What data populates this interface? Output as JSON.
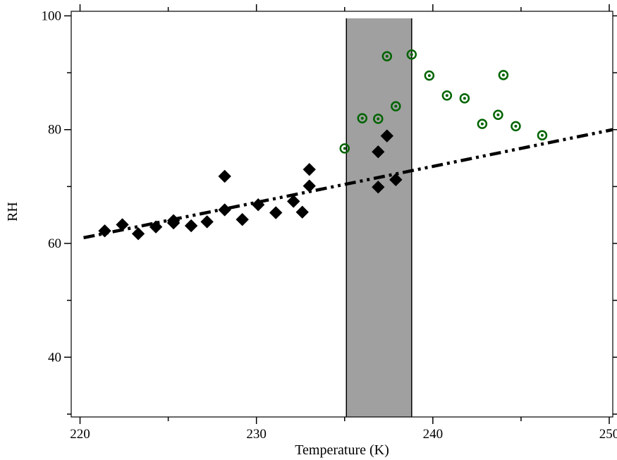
{
  "chart_data": {
    "type": "scatter",
    "title": "",
    "xlabel": "Temperature (K)",
    "ylabel": "RH",
    "xlim": [
      219.5,
      250.2
    ],
    "ylim": [
      29.5,
      100.8
    ],
    "grid": false,
    "legend": "none",
    "x_ticks": [
      220,
      230,
      240,
      250
    ],
    "x_tick_labels": [
      "220",
      "230",
      "240",
      "250"
    ],
    "y_ticks": [
      40,
      60,
      80,
      100
    ],
    "y_tick_labels": [
      "40",
      "60",
      "80",
      "100"
    ],
    "shaded_band": {
      "x_range": [
        235.1,
        238.8
      ],
      "color": "#a0a0a0"
    },
    "series": [
      {
        "marker": "diamond",
        "color": "#000000",
        "points": [
          [
            221.4,
            62.2
          ],
          [
            222.4,
            63.3
          ],
          [
            223.3,
            61.7
          ],
          [
            224.3,
            62.9
          ],
          [
            225.3,
            63.6
          ],
          [
            225.3,
            64.0
          ],
          [
            226.3,
            63.1
          ],
          [
            227.2,
            63.8
          ],
          [
            228.2,
            65.9
          ],
          [
            228.2,
            71.8
          ],
          [
            229.2,
            64.2
          ],
          [
            230.1,
            66.8
          ],
          [
            231.1,
            65.4
          ],
          [
            232.1,
            67.4
          ],
          [
            232.6,
            65.5
          ],
          [
            233.0,
            70.1
          ],
          [
            233.0,
            73.0
          ],
          [
            236.9,
            69.9
          ],
          [
            236.9,
            76.1
          ],
          [
            237.4,
            78.9
          ],
          [
            237.9,
            71.2
          ]
        ]
      },
      {
        "marker": "circle",
        "color": "#006400",
        "points": [
          [
            235.0,
            76.7
          ],
          [
            236.0,
            82.0
          ],
          [
            236.9,
            81.9
          ],
          [
            237.4,
            92.9
          ],
          [
            237.9,
            84.1
          ],
          [
            238.8,
            93.2
          ],
          [
            239.8,
            89.5
          ],
          [
            240.8,
            86.0
          ],
          [
            241.8,
            85.5
          ],
          [
            242.8,
            81.0
          ],
          [
            243.7,
            82.6
          ],
          [
            244.0,
            89.6
          ],
          [
            244.7,
            80.6
          ],
          [
            246.2,
            79.0
          ]
        ]
      }
    ],
    "fit_line": {
      "style": "dash-dot",
      "color": "#000000",
      "points": [
        [
          220.2,
          61.0
        ],
        [
          250.2,
          80.0
        ]
      ]
    }
  }
}
